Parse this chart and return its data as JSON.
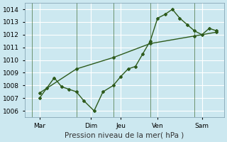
{
  "xlabel": "Pression niveau de la mer( hPa )",
  "bg_color": "#cce8f0",
  "grid_color": "#ffffff",
  "line_color": "#2d5a1b",
  "ylim": [
    1005.5,
    1014.5
  ],
  "yticks": [
    1006,
    1007,
    1008,
    1009,
    1010,
    1011,
    1012,
    1013,
    1014
  ],
  "xlim": [
    -0.5,
    13.0
  ],
  "xtick_positions": [
    0.5,
    4.0,
    6.0,
    8.5,
    11.5
  ],
  "xtick_labels": [
    "Mar",
    "Dim",
    "Jeu",
    "Ven",
    "Sam"
  ],
  "vline_positions": [
    0.0,
    3.0,
    5.5,
    8.0,
    11.0,
    13.0
  ],
  "line1_x": [
    0.5,
    1.0,
    1.5,
    2.0,
    2.5,
    3.0,
    3.5,
    4.2,
    4.8,
    5.5,
    6.0,
    6.5,
    7.0,
    7.5,
    8.0,
    8.5,
    9.0,
    9.5,
    10.0,
    10.5,
    11.0,
    11.5,
    12.0,
    12.5
  ],
  "line1_y": [
    1007.0,
    1007.8,
    1008.6,
    1007.9,
    1007.7,
    1007.5,
    1006.8,
    1006.0,
    1007.5,
    1008.0,
    1008.7,
    1009.3,
    1009.5,
    1010.5,
    1011.5,
    1013.3,
    1013.6,
    1014.0,
    1013.3,
    1012.8,
    1012.3,
    1012.0,
    1012.5,
    1012.3
  ],
  "line2_x": [
    0.5,
    3.0,
    5.5,
    8.0,
    11.0,
    12.5
  ],
  "line2_y": [
    1007.4,
    1009.3,
    1010.2,
    1011.3,
    1011.9,
    1012.2
  ]
}
